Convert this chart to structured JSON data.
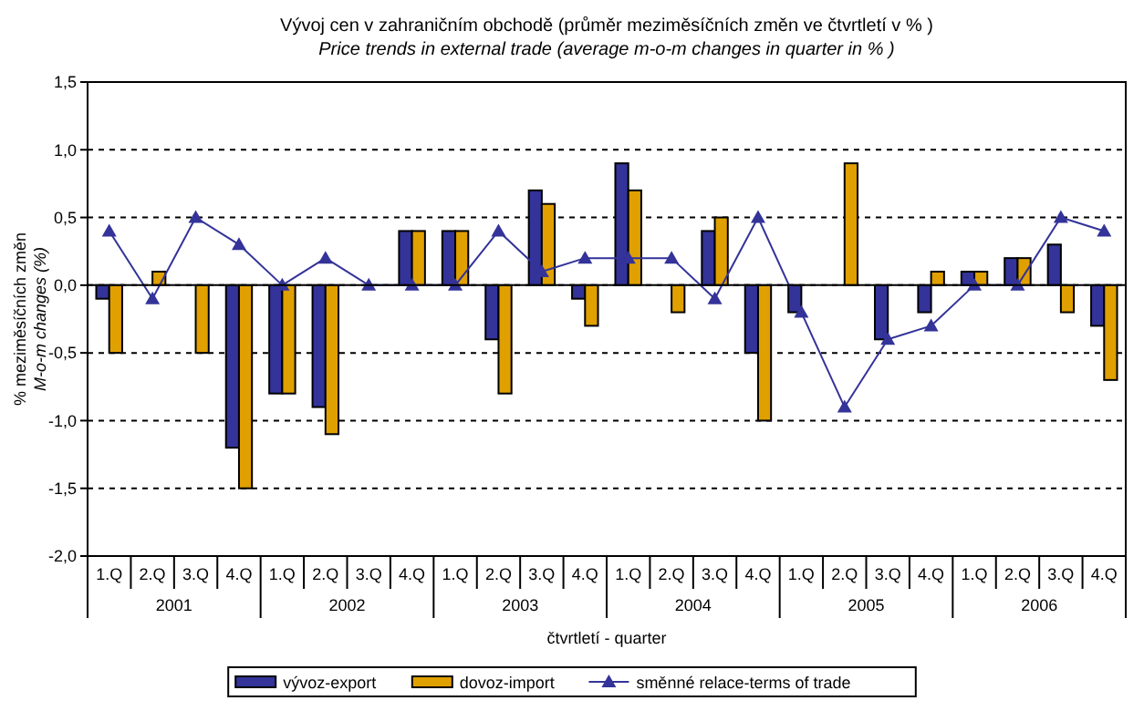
{
  "chart_data": {
    "type": "bar",
    "title": "Vývoj cen v zahraničním obchodě (průměr meziměsíčních změn ve čtvrtletí v % )",
    "subtitle": "Price trends in external trade (average m-o-m changes in quarter in % )",
    "xlabel": "čtvrtletí - quarter",
    "ylabel": "% meziměsíčních změn\nM-o-m changes (%)",
    "categories": [
      "1.Q",
      "2.Q",
      "3.Q",
      "4.Q",
      "1.Q",
      "2.Q",
      "3.Q",
      "4.Q",
      "1.Q",
      "2.Q",
      "3.Q",
      "4.Q",
      "1.Q",
      "2.Q",
      "3.Q",
      "4.Q",
      "1.Q",
      "2.Q",
      "3.Q",
      "4.Q",
      "1.Q",
      "2.Q",
      "3.Q",
      "4.Q"
    ],
    "annotations": [
      "2001",
      "2002",
      "2003",
      "2004",
      "2005",
      "2006"
    ],
    "series": [
      {
        "name": "vývoz-export",
        "color": "#333399",
        "values": [
          -0.1,
          0,
          0,
          -1.2,
          -0.8,
          -0.9,
          0,
          0.4,
          0.4,
          -0.4,
          0.7,
          -0.1,
          0.9,
          0,
          0.4,
          -0.5,
          -0.2,
          0,
          -0.4,
          -0.2,
          0.1,
          0.2,
          0.3,
          -0.3
        ]
      },
      {
        "name": "dovoz-import",
        "color": "#e0a000",
        "values": [
          -0.5,
          0.1,
          -0.5,
          -1.5,
          -0.8,
          -1.1,
          0,
          0.4,
          0.4,
          -0.8,
          0.6,
          -0.3,
          0.7,
          -0.2,
          0.5,
          -1.0,
          0,
          0.9,
          0,
          0.1,
          0.1,
          0.2,
          -0.2,
          -0.7
        ]
      },
      {
        "name": "směnné relace-terms of trade",
        "type": "line",
        "color": "#333399",
        "marker": "triangle",
        "values": [
          0.4,
          -0.1,
          0.5,
          0.3,
          0,
          0.2,
          0,
          0,
          0,
          0.4,
          0.1,
          0.2,
          0.2,
          0.2,
          -0.1,
          0.5,
          -0.2,
          -0.9,
          -0.4,
          -0.3,
          0,
          0,
          0.5,
          0.4
        ]
      }
    ],
    "ylim": [
      -2,
      1.5
    ],
    "yticks": [
      {
        "value": -2,
        "label": "-2,0"
      },
      {
        "value": -1.5,
        "label": "-1,5"
      },
      {
        "value": -1,
        "label": "-1,0"
      },
      {
        "value": -0.5,
        "label": "-0,5"
      },
      {
        "value": 0,
        "label": "0,0"
      },
      {
        "value": 0.5,
        "label": "0,5"
      },
      {
        "value": 1,
        "label": "1,0"
      },
      {
        "value": 1.5,
        "label": "1,5"
      }
    ],
    "grid": "y",
    "legend": "bottom"
  }
}
